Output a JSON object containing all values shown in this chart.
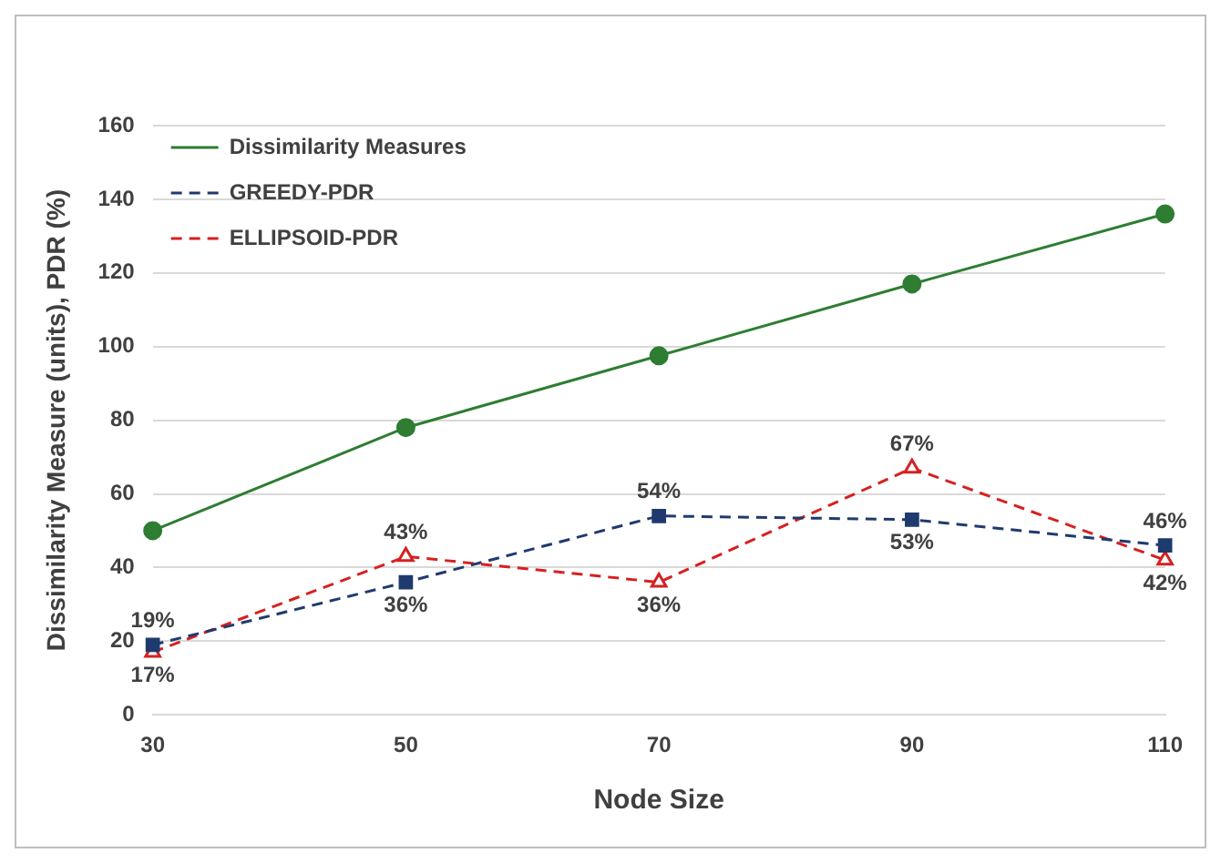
{
  "chart_data": {
    "type": "line",
    "xlabel": "Node Size",
    "ylabel": "Dissimilarity Measure (units), PDR (%)",
    "categories": [
      "30",
      "50",
      "70",
      "90",
      "110"
    ],
    "series": [
      {
        "name": "Dissimilarity Measures",
        "color": "#2e7d32",
        "values": [
          50,
          78,
          97.5,
          117,
          136
        ],
        "marker": "circle",
        "line_style": "solid"
      },
      {
        "name": "GREEDY-PDR",
        "color": "#1f3a6e",
        "values": [
          19,
          36,
          54,
          53,
          46
        ],
        "marker": "square",
        "line_style": "dashed",
        "value_labels": [
          "19%",
          "36%",
          "54%",
          "53%",
          "46%"
        ]
      },
      {
        "name": "ELLIPSOID-PDR",
        "color": "#d62020",
        "values": [
          17,
          43,
          36,
          67,
          42
        ],
        "marker": "triangle",
        "line_style": "dashed",
        "value_labels": [
          "17%",
          "43%",
          "36%",
          "67%",
          "42%"
        ]
      }
    ],
    "ylim": [
      0,
      160
    ],
    "yticks": [
      0,
      20,
      40,
      60,
      80,
      100,
      120,
      140,
      160
    ],
    "grid": "y",
    "legend": "top left"
  }
}
